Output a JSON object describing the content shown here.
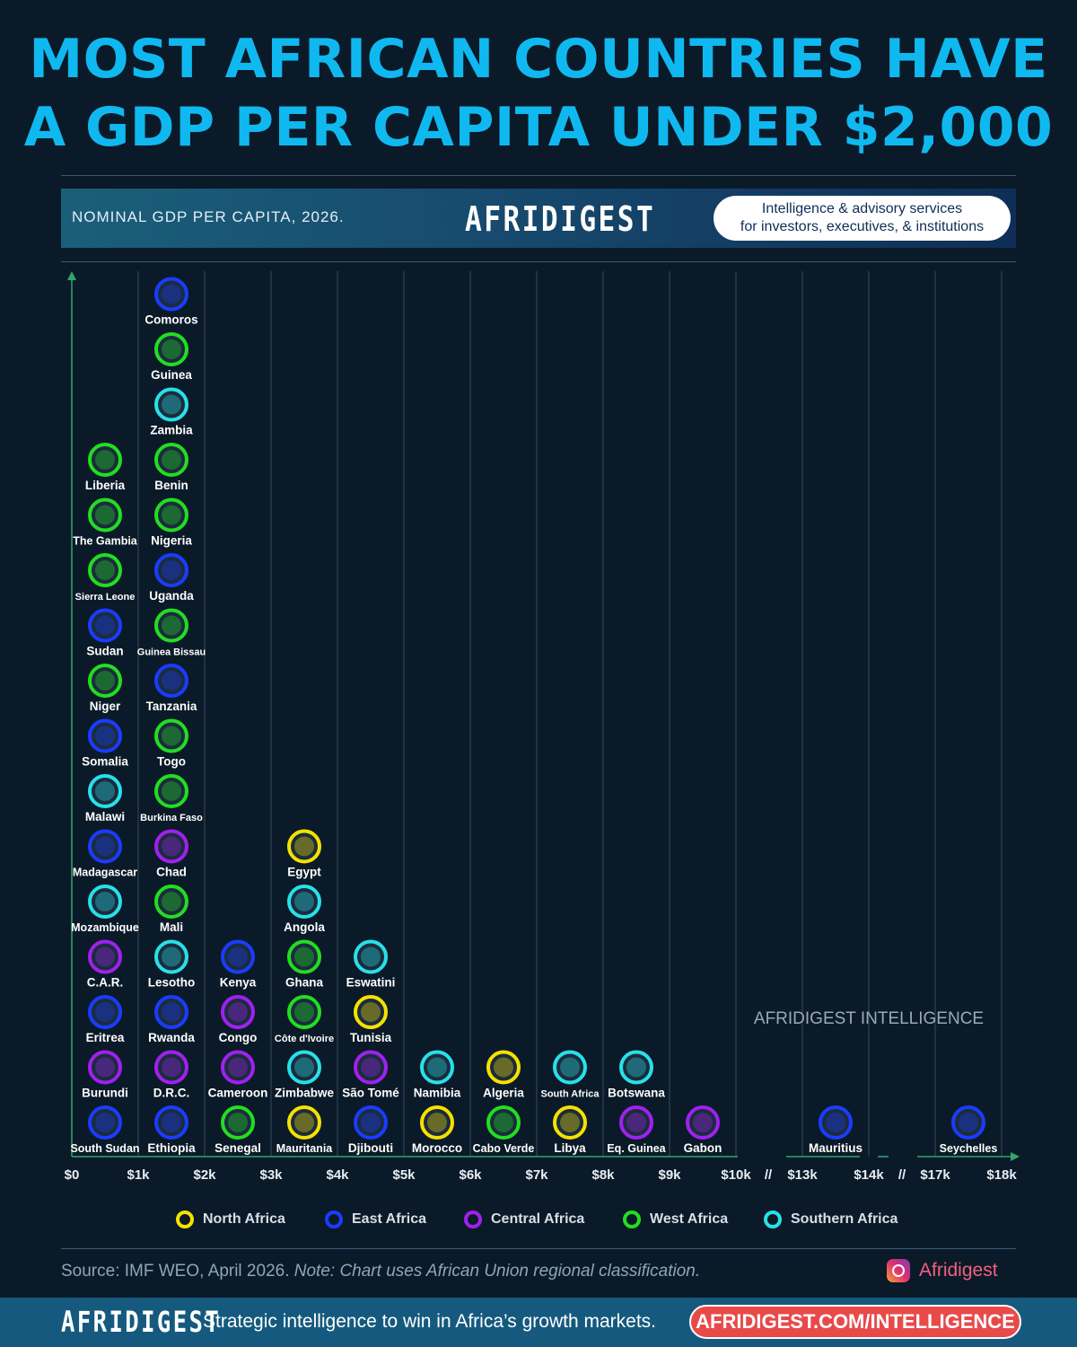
{
  "title": {
    "line1": "MOST AFRICAN COUNTRIES HAVE",
    "line2": "A GDP PER CAPITA UNDER $2,000"
  },
  "banner": {
    "subtitle": "NOMINAL GDP PER CAPITA, 2026.",
    "logo": "AFRIDIGEST",
    "pill_line1": "Intelligence & advisory services",
    "pill_line2": "for investors, executives, & institutions"
  },
  "watermark": "AFRIDIGEST INTELLIGENCE",
  "legend": [
    {
      "label": "North Africa",
      "color": "#f5e100"
    },
    {
      "label": "East Africa",
      "color": "#1a3cff"
    },
    {
      "label": "Central Africa",
      "color": "#a020f0"
    },
    {
      "label": "West Africa",
      "color": "#22dd22"
    },
    {
      "label": "Southern Africa",
      "color": "#28e0e8"
    }
  ],
  "source": {
    "text": "Source: IMF WEO, April 2026. ",
    "note": "Note: Chart uses African Union regional classification."
  },
  "instagram": "Afridigest",
  "footer": {
    "logo": "AFRIDIGEST",
    "tagline": "Strategic intelligence to win in Africa’s growth markets.",
    "cta": "AFRIDIGEST.COM/INTELLIGENCE"
  },
  "chart_data": {
    "type": "binned dot plot",
    "title": "MOST AFRICAN COUNTRIES HAVE A GDP PER CAPITA UNDER $2,000",
    "subtitle": "NOMINAL GDP PER CAPITA, 2026.",
    "x_tick_labels": [
      "$0",
      "$1k",
      "$2k",
      "$3k",
      "$4k",
      "$5k",
      "$6k",
      "$7k",
      "$8k",
      "$9k",
      "$10k",
      "//",
      "$13k",
      "$14k",
      "//",
      "$17k",
      "$18k"
    ],
    "bins": [
      {
        "range": "$0–$1k",
        "countries": [
          {
            "name": "South Sudan",
            "region": "East Africa"
          },
          {
            "name": "Burundi",
            "region": "Central Africa"
          },
          {
            "name": "Eritrea",
            "region": "East Africa"
          },
          {
            "name": "C.A.R.",
            "region": "Central Africa"
          },
          {
            "name": "Mozambique",
            "region": "Southern Africa"
          },
          {
            "name": "Madagascar",
            "region": "East Africa"
          },
          {
            "name": "Malawi",
            "region": "Southern Africa"
          },
          {
            "name": "Somalia",
            "region": "East Africa"
          },
          {
            "name": "Niger",
            "region": "West Africa"
          },
          {
            "name": "Sudan",
            "region": "East Africa"
          },
          {
            "name": "Sierra Leone",
            "region": "West Africa"
          },
          {
            "name": "The Gambia",
            "region": "West Africa"
          },
          {
            "name": "Liberia",
            "region": "West Africa"
          }
        ]
      },
      {
        "range": "$1k–$2k",
        "countries": [
          {
            "name": "Ethiopia",
            "region": "East Africa"
          },
          {
            "name": "D.R.C.",
            "region": "Central Africa"
          },
          {
            "name": "Rwanda",
            "region": "East Africa"
          },
          {
            "name": "Lesotho",
            "region": "Southern Africa"
          },
          {
            "name": "Mali",
            "region": "West Africa"
          },
          {
            "name": "Chad",
            "region": "Central Africa"
          },
          {
            "name": "Burkina Faso",
            "region": "West Africa"
          },
          {
            "name": "Togo",
            "region": "West Africa"
          },
          {
            "name": "Tanzania",
            "region": "East Africa"
          },
          {
            "name": "Guinea Bissau",
            "region": "West Africa"
          },
          {
            "name": "Uganda",
            "region": "East Africa"
          },
          {
            "name": "Nigeria",
            "region": "West Africa"
          },
          {
            "name": "Benin",
            "region": "West Africa"
          },
          {
            "name": "Zambia",
            "region": "Southern Africa"
          },
          {
            "name": "Guinea",
            "region": "West Africa"
          },
          {
            "name": "Comoros",
            "region": "East Africa"
          }
        ]
      },
      {
        "range": "$2k–$3k",
        "countries": [
          {
            "name": "Senegal",
            "region": "West Africa"
          },
          {
            "name": "Cameroon",
            "region": "Central Africa"
          },
          {
            "name": "Congo",
            "region": "Central Africa"
          },
          {
            "name": "Kenya",
            "region": "East Africa"
          }
        ]
      },
      {
        "range": "$3k–$4k",
        "countries": [
          {
            "name": "Mauritania",
            "region": "North Africa"
          },
          {
            "name": "Zimbabwe",
            "region": "Southern Africa"
          },
          {
            "name": "Côte d'Ivoire",
            "region": "West Africa"
          },
          {
            "name": "Ghana",
            "region": "West Africa"
          },
          {
            "name": "Angola",
            "region": "Southern Africa"
          },
          {
            "name": "Egypt",
            "region": "North Africa"
          }
        ]
      },
      {
        "range": "$4k–$5k",
        "countries": [
          {
            "name": "Djibouti",
            "region": "East Africa"
          },
          {
            "name": "São Tomé",
            "region": "Central Africa"
          },
          {
            "name": "Tunisia",
            "region": "North Africa"
          },
          {
            "name": "Eswatini",
            "region": "Southern Africa"
          }
        ]
      },
      {
        "range": "$5k–$6k",
        "countries": [
          {
            "name": "Morocco",
            "region": "North Africa"
          },
          {
            "name": "Namibia",
            "region": "Southern Africa"
          }
        ]
      },
      {
        "range": "$6k–$7k",
        "countries": [
          {
            "name": "Cabo Verde",
            "region": "West Africa"
          },
          {
            "name": "Algeria",
            "region": "North Africa"
          }
        ]
      },
      {
        "range": "$7k–$8k",
        "countries": [
          {
            "name": "Libya",
            "region": "North Africa"
          },
          {
            "name": "South Africa",
            "region": "Southern Africa"
          }
        ]
      },
      {
        "range": "$8k–$9k",
        "countries": [
          {
            "name": "Eq. Guinea",
            "region": "Central Africa"
          },
          {
            "name": "Botswana",
            "region": "Southern Africa"
          }
        ]
      },
      {
        "range": "$9k–$10k",
        "countries": [
          {
            "name": "Gabon",
            "region": "Central Africa"
          }
        ]
      },
      {
        "range": "$13k–$14k",
        "countries": [
          {
            "name": "Mauritius",
            "region": "East Africa"
          }
        ]
      },
      {
        "range": "$17k–$18k",
        "countries": [
          {
            "name": "Seychelles",
            "region": "East Africa"
          }
        ]
      }
    ]
  }
}
